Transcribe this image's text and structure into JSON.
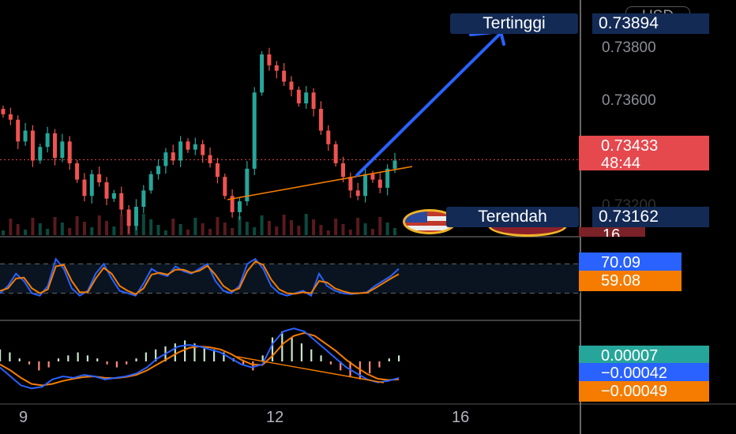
{
  "chart_data": [
    {
      "type": "candlestick",
      "title": "",
      "x_ticks": [
        "9",
        "12",
        "16"
      ],
      "price_ticks": [
        0.732,
        0.734,
        0.736,
        0.738
      ],
      "price_tick_labels": [
        "0.73200",
        "0.73600",
        "0.73800"
      ],
      "ylim": [
        0.7315,
        0.7402
      ],
      "current_price": "0.73433",
      "countdown": "48:44",
      "high_label": "Tertinggi",
      "high_value": "0.73894",
      "low_label": "Terendah",
      "low_value": "0.73162",
      "volume_label": "16",
      "currency": "USD",
      "close_prices": [
        0.736,
        0.7358,
        0.735,
        0.7354,
        0.7343,
        0.7348,
        0.7353,
        0.7344,
        0.735,
        0.7342,
        0.7336,
        0.733,
        0.7338,
        0.7335,
        0.7329,
        0.7331,
        0.7325,
        0.7319,
        0.7326,
        0.7332,
        0.7338,
        0.7341,
        0.7346,
        0.7343,
        0.735,
        0.7347,
        0.7349,
        0.7345,
        0.7342,
        0.7337,
        0.733,
        0.7324,
        0.7328,
        0.734,
        0.7368,
        0.7382,
        0.7378,
        0.7376,
        0.7372,
        0.7369,
        0.7364,
        0.7368,
        0.7362,
        0.7354,
        0.7349,
        0.7342,
        0.7337,
        0.7332,
        0.733,
        0.7338,
        0.7336,
        0.7333,
        0.734,
        0.7343
      ],
      "trend_lines": [
        "support",
        "projection-up"
      ]
    },
    {
      "type": "line",
      "indicator": "stochastic",
      "series": [
        {
          "name": "",
          "color": "#2962ff",
          "value": "70.09",
          "values": [
            20,
            35,
            60,
            45,
            20,
            15,
            35,
            90,
            70,
            30,
            15,
            25,
            60,
            80,
            50,
            25,
            20,
            15,
            40,
            70,
            60,
            55,
            75,
            65,
            60,
            70,
            80,
            45,
            25,
            20,
            35,
            80,
            90,
            70,
            35,
            20,
            15,
            20,
            25,
            15,
            60,
            35,
            25,
            20,
            18,
            20,
            22,
            35,
            45,
            55,
            70
          ]
        },
        {
          "name": "",
          "color": "#f57c00",
          "value": "59.08",
          "values": [
            25,
            30,
            50,
            52,
            30,
            20,
            28,
            75,
            78,
            45,
            22,
            22,
            50,
            72,
            60,
            35,
            25,
            18,
            30,
            58,
            62,
            58,
            68,
            68,
            62,
            66,
            76,
            58,
            35,
            24,
            30,
            65,
            85,
            78,
            48,
            28,
            20,
            19,
            22,
            20,
            45,
            42,
            30,
            24,
            20,
            20,
            21,
            30,
            40,
            50,
            59
          ]
        }
      ]
    },
    {
      "type": "line",
      "indicator": "macd",
      "values_text": [
        "0.00007",
        "−0.00042",
        "−0.00049"
      ],
      "histogram": [
        0.4,
        0.3,
        0.1,
        -0.1,
        -0.3,
        -0.2,
        0.1,
        0.2,
        0.3,
        0.2,
        0.1,
        -0.1,
        -0.2,
        -0.1,
        0.1,
        0.3,
        0.4,
        0.5,
        0.6,
        0.7,
        0.6,
        0.5,
        0.4,
        0.3,
        0.1,
        -0.1,
        -0.3,
        0.2,
        0.8,
        1.0,
        0.8,
        0.6,
        0.4,
        0.2,
        -0.1,
        -0.3,
        -0.5,
        -0.6,
        -0.4,
        -0.2,
        0.1,
        0.2
      ],
      "macd_line": [
        -0.2,
        -0.5,
        -0.8,
        -0.9,
        -0.85,
        -0.6,
        -0.5,
        -0.55,
        -0.45,
        -0.5,
        -0.6,
        -0.55,
        -0.5,
        -0.4,
        -0.2,
        0.1,
        0.3,
        0.5,
        0.55,
        0.5,
        0.4,
        0.3,
        0.1,
        -0.1,
        -0.2,
        -0.1,
        0.6,
        1.0,
        1.1,
        1.0,
        0.7,
        0.4,
        0.1,
        -0.2,
        -0.4,
        -0.6,
        -0.7,
        -0.65,
        -0.55
      ],
      "signal_line": [
        -0.1,
        -0.3,
        -0.55,
        -0.75,
        -0.8,
        -0.75,
        -0.65,
        -0.58,
        -0.52,
        -0.5,
        -0.55,
        -0.56,
        -0.52,
        -0.45,
        -0.3,
        -0.1,
        0.1,
        0.3,
        0.45,
        0.5,
        0.47,
        0.4,
        0.25,
        0.05,
        -0.1,
        -0.12,
        0.2,
        0.6,
        0.85,
        0.95,
        0.85,
        0.6,
        0.35,
        0.05,
        -0.2,
        -0.42,
        -0.58,
        -0.62,
        -0.6
      ]
    }
  ]
}
